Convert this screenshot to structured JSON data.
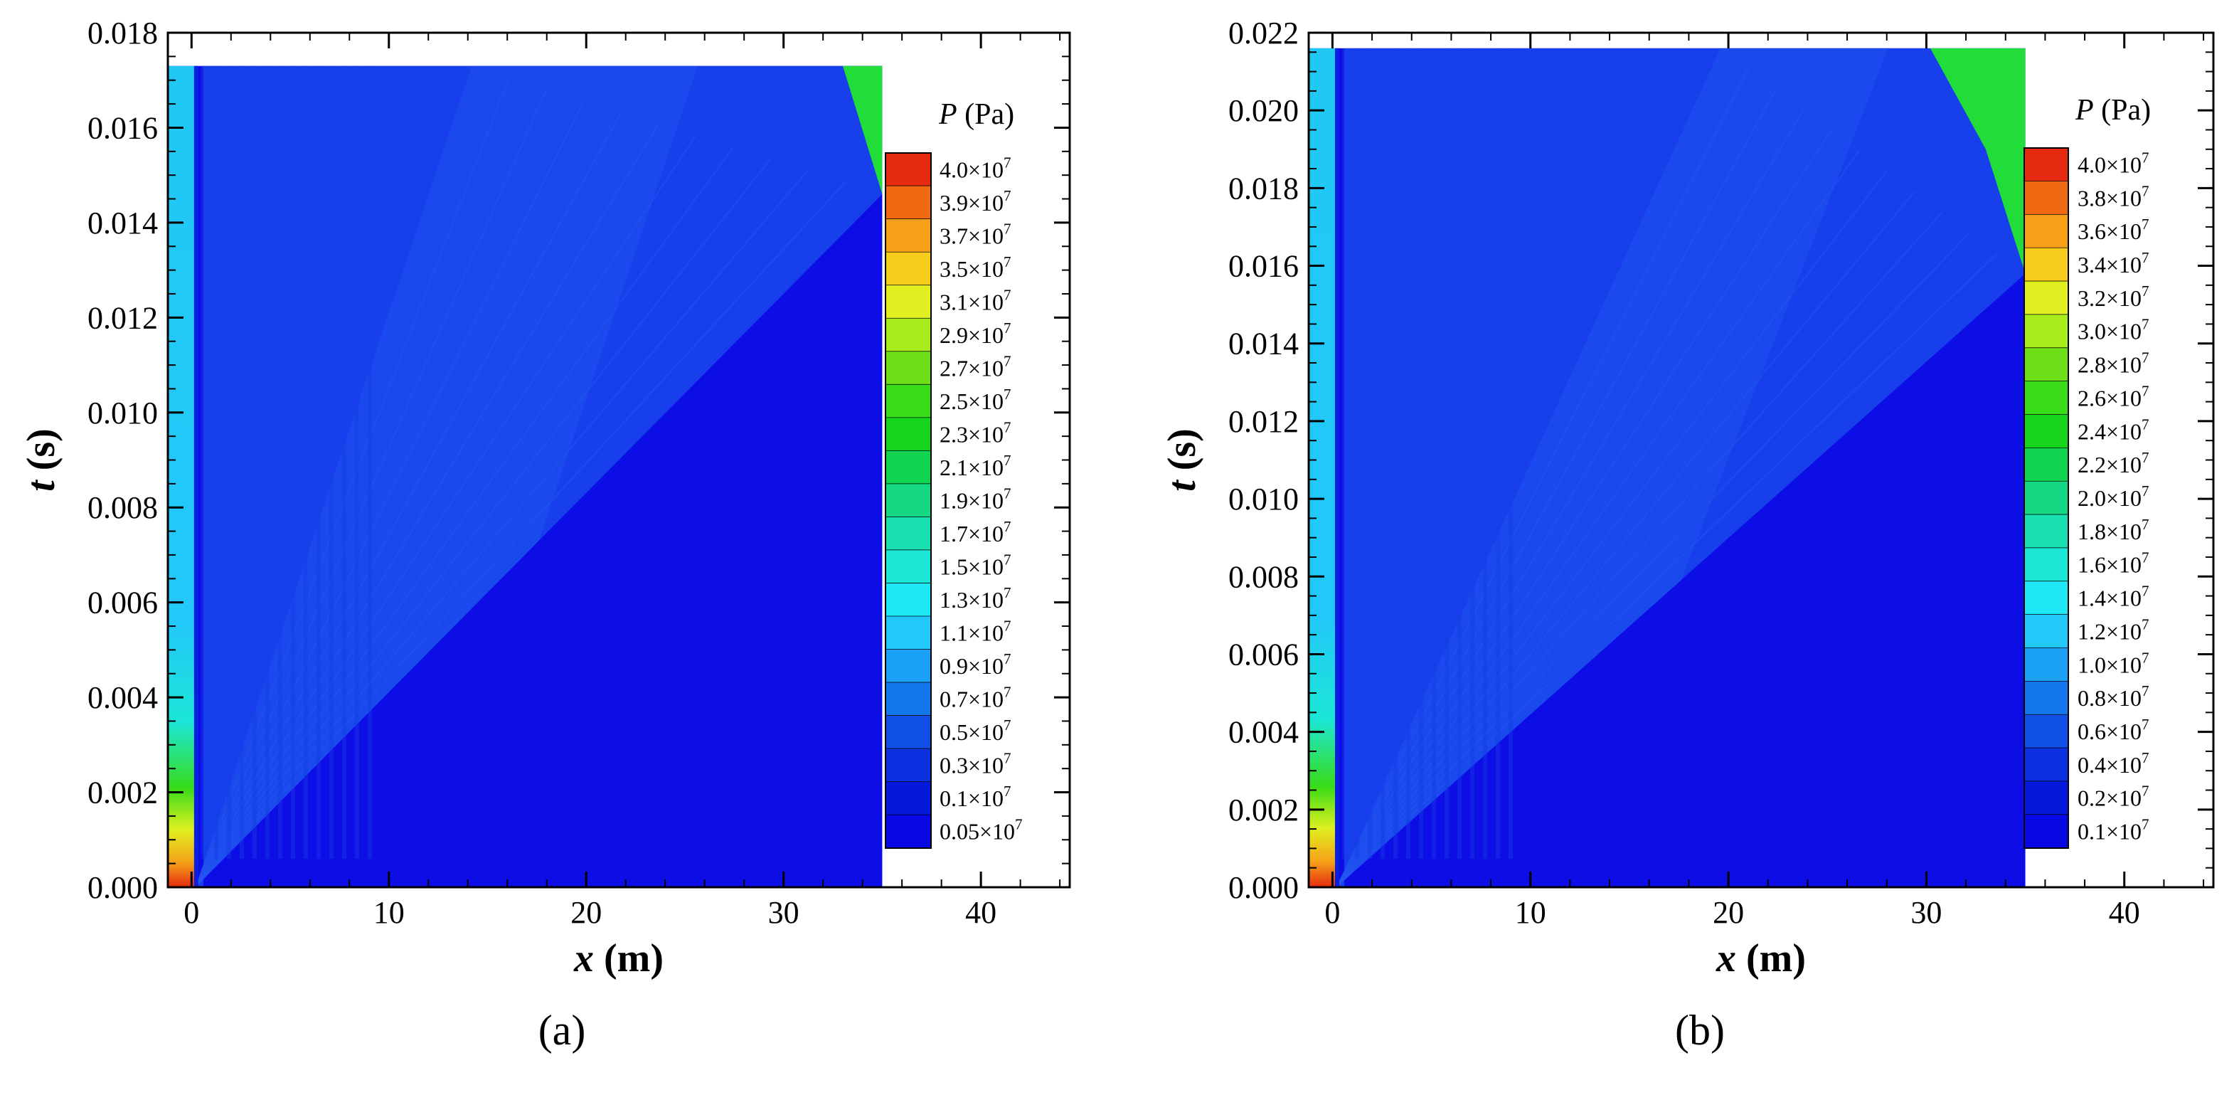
{
  "chart_data": [
    {
      "type": "heatmap",
      "panel_label": "(a)",
      "x_axis": {
        "label_var": "x",
        "label_unit": " (m)",
        "ticks": [
          0,
          10,
          20,
          30,
          40
        ],
        "range": [
          -1.2,
          44.5
        ]
      },
      "y_axis": {
        "label_var": "t",
        "label_unit": " (s)",
        "ticks": [
          "0.000",
          "0.002",
          "0.004",
          "0.006",
          "0.008",
          "0.010",
          "0.012",
          "0.014",
          "0.016",
          "0.018"
        ],
        "range": [
          0,
          0.018
        ]
      },
      "domain": {
        "x_min": -1.2,
        "x_max": 35,
        "t_max": 0.0173
      },
      "features": {
        "shock_front": [
          [
            0.2,
            0.0
          ],
          [
            35,
            0.0146
          ]
        ],
        "rarefaction_edge": [
          [
            0.2,
            0.0
          ],
          [
            14.2,
            0.0173
          ]
        ],
        "reflected_region": [
          [
            33.0,
            0.0173
          ],
          [
            35.0,
            0.0173
          ],
          [
            35.0,
            0.0146
          ]
        ]
      },
      "colorbar": {
        "title_var": "P",
        "title_unit": " (Pa)",
        "levels": [
          {
            "mant": "4.0",
            "exp": "7",
            "color": "#e62a10"
          },
          {
            "mant": "3.9",
            "exp": "7",
            "color": "#ef6a10"
          },
          {
            "mant": "3.7",
            "exp": "7",
            "color": "#f5a018"
          },
          {
            "mant": "3.5",
            "exp": "7",
            "color": "#f8cc1c"
          },
          {
            "mant": "3.1",
            "exp": "7",
            "color": "#e0f020"
          },
          {
            "mant": "2.9",
            "exp": "7",
            "color": "#a8ec1c"
          },
          {
            "mant": "2.7",
            "exp": "7",
            "color": "#6ee018"
          },
          {
            "mant": "2.5",
            "exp": "7",
            "color": "#38dc18"
          },
          {
            "mant": "2.3",
            "exp": "7",
            "color": "#14d41c"
          },
          {
            "mant": "2.1",
            "exp": "7",
            "color": "#10d450"
          },
          {
            "mant": "1.9",
            "exp": "7",
            "color": "#14d884"
          },
          {
            "mant": "1.7",
            "exp": "7",
            "color": "#18e0b0"
          },
          {
            "mant": "1.5",
            "exp": "7",
            "color": "#1ce6d6"
          },
          {
            "mant": "1.3",
            "exp": "7",
            "color": "#1ee8f6"
          },
          {
            "mant": "1.1",
            "exp": "7",
            "color": "#22c8f8"
          },
          {
            "mant": "0.9",
            "exp": "7",
            "color": "#1aa0f4"
          },
          {
            "mant": "0.7",
            "exp": "7",
            "color": "#1478ec"
          },
          {
            "mant": "0.5",
            "exp": "7",
            "color": "#1050e6"
          },
          {
            "mant": "0.3",
            "exp": "7",
            "color": "#0a30e0"
          },
          {
            "mant": "0.1",
            "exp": "7",
            "color": "#0618dc"
          },
          {
            "mant": "0.05",
            "exp": "7",
            "color": "#0808e4"
          }
        ]
      }
    },
    {
      "type": "heatmap",
      "panel_label": "(b)",
      "x_axis": {
        "label_var": "x",
        "label_unit": " (m)",
        "ticks": [
          0,
          10,
          20,
          30,
          40
        ],
        "range": [
          -1.2,
          44.5
        ]
      },
      "y_axis": {
        "label_var": "t",
        "label_unit": " (s)",
        "ticks": [
          "0.000",
          "0.002",
          "0.004",
          "0.006",
          "0.008",
          "0.010",
          "0.012",
          "0.014",
          "0.016",
          "0.018",
          "0.020",
          "0.022"
        ],
        "range": [
          0,
          0.022
        ]
      },
      "domain": {
        "x_min": -1.2,
        "x_max": 35,
        "t_max": 0.0216
      },
      "features": {
        "shock_front": [
          [
            0.2,
            0.0
          ],
          [
            35,
            0.0158
          ]
        ],
        "rarefaction_edge": [
          [
            0.2,
            0.0
          ],
          [
            19.6,
            0.0216
          ]
        ],
        "reflected_region": [
          [
            30.2,
            0.0216
          ],
          [
            35.0,
            0.0216
          ],
          [
            35.0,
            0.0158
          ],
          [
            33.0,
            0.019
          ]
        ]
      },
      "colorbar": {
        "title_var": "P",
        "title_unit": " (Pa)",
        "levels": [
          {
            "mant": "4.0",
            "exp": "7",
            "color": "#e62a10"
          },
          {
            "mant": "3.8",
            "exp": "7",
            "color": "#ef6a10"
          },
          {
            "mant": "3.6",
            "exp": "7",
            "color": "#f5a018"
          },
          {
            "mant": "3.4",
            "exp": "7",
            "color": "#f8cc1c"
          },
          {
            "mant": "3.2",
            "exp": "7",
            "color": "#e0f020"
          },
          {
            "mant": "3.0",
            "exp": "7",
            "color": "#a8ec1c"
          },
          {
            "mant": "2.8",
            "exp": "7",
            "color": "#6ee018"
          },
          {
            "mant": "2.6",
            "exp": "7",
            "color": "#38dc18"
          },
          {
            "mant": "2.4",
            "exp": "7",
            "color": "#14d41c"
          },
          {
            "mant": "2.2",
            "exp": "7",
            "color": "#10d450"
          },
          {
            "mant": "2.0",
            "exp": "7",
            "color": "#14d884"
          },
          {
            "mant": "1.8",
            "exp": "7",
            "color": "#18e0b0"
          },
          {
            "mant": "1.6",
            "exp": "7",
            "color": "#1ce6d6"
          },
          {
            "mant": "1.4",
            "exp": "7",
            "color": "#1ee8f6"
          },
          {
            "mant": "1.2",
            "exp": "7",
            "color": "#22c8f8"
          },
          {
            "mant": "1.0",
            "exp": "7",
            "color": "#1aa0f4"
          },
          {
            "mant": "0.8",
            "exp": "7",
            "color": "#1478ec"
          },
          {
            "mant": "0.6",
            "exp": "7",
            "color": "#1050e6"
          },
          {
            "mant": "0.4",
            "exp": "7",
            "color": "#0a30e0"
          },
          {
            "mant": "0.2",
            "exp": "7",
            "color": "#0618dc"
          },
          {
            "mant": "0.1",
            "exp": "7",
            "color": "#0808e4"
          }
        ]
      }
    }
  ],
  "colors": {
    "background_blue": "#0d0ee6",
    "wave_blue": "#1740ec",
    "rarefaction_blue": "#1b4cee",
    "left_column_cyan": "#22c8f4",
    "reflected_green": "#22dc3a"
  }
}
